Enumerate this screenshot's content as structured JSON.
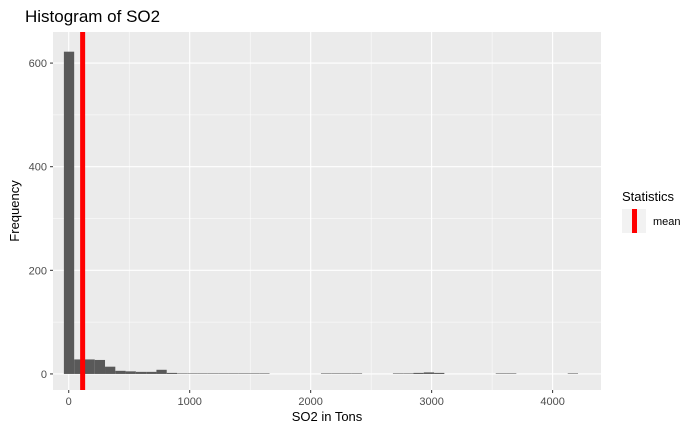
{
  "chart_data": {
    "type": "histogram",
    "title": "Histogram of SO2",
    "xlabel": "SO2 in Tons",
    "ylabel": "Frequency",
    "xlim": [
      -130,
      4400
    ],
    "ylim": [
      -31,
      660
    ],
    "x_ticks": [
      0,
      1000,
      2000,
      3000,
      4000
    ],
    "y_ticks": [
      0,
      200,
      400,
      600
    ],
    "bin_width": 85,
    "bins": [
      {
        "x0": -40,
        "count": 622
      },
      {
        "x0": 45,
        "count": 28
      },
      {
        "x0": 130,
        "count": 28
      },
      {
        "x0": 215,
        "count": 27
      },
      {
        "x0": 300,
        "count": 14
      },
      {
        "x0": 385,
        "count": 6
      },
      {
        "x0": 470,
        "count": 5
      },
      {
        "x0": 555,
        "count": 4
      },
      {
        "x0": 640,
        "count": 4
      },
      {
        "x0": 725,
        "count": 8
      },
      {
        "x0": 810,
        "count": 2
      },
      {
        "x0": 895,
        "count": 1
      },
      {
        "x0": 980,
        "count": 1
      },
      {
        "x0": 1065,
        "count": 1
      },
      {
        "x0": 1150,
        "count": 1
      },
      {
        "x0": 1235,
        "count": 1
      },
      {
        "x0": 1320,
        "count": 1
      },
      {
        "x0": 1405,
        "count": 1
      },
      {
        "x0": 1490,
        "count": 1
      },
      {
        "x0": 1575,
        "count": 1
      },
      {
        "x0": 2085,
        "count": 1
      },
      {
        "x0": 2170,
        "count": 1
      },
      {
        "x0": 2255,
        "count": 1
      },
      {
        "x0": 2340,
        "count": 1
      },
      {
        "x0": 2680,
        "count": 1
      },
      {
        "x0": 2765,
        "count": 1
      },
      {
        "x0": 2850,
        "count": 2
      },
      {
        "x0": 2935,
        "count": 3
      },
      {
        "x0": 3020,
        "count": 2
      },
      {
        "x0": 3530,
        "count": 1
      },
      {
        "x0": 3615,
        "count": 1
      },
      {
        "x0": 4125,
        "count": 1
      }
    ],
    "mean_line": {
      "x": 115,
      "color": "#ff0000"
    },
    "legend": {
      "title": "Statistics",
      "entries": [
        {
          "label": "mean",
          "color": "#ff0000"
        }
      ]
    },
    "bar_color": "#595959",
    "panel_background": "#ebebeb",
    "grid_color": "#ffffff"
  }
}
